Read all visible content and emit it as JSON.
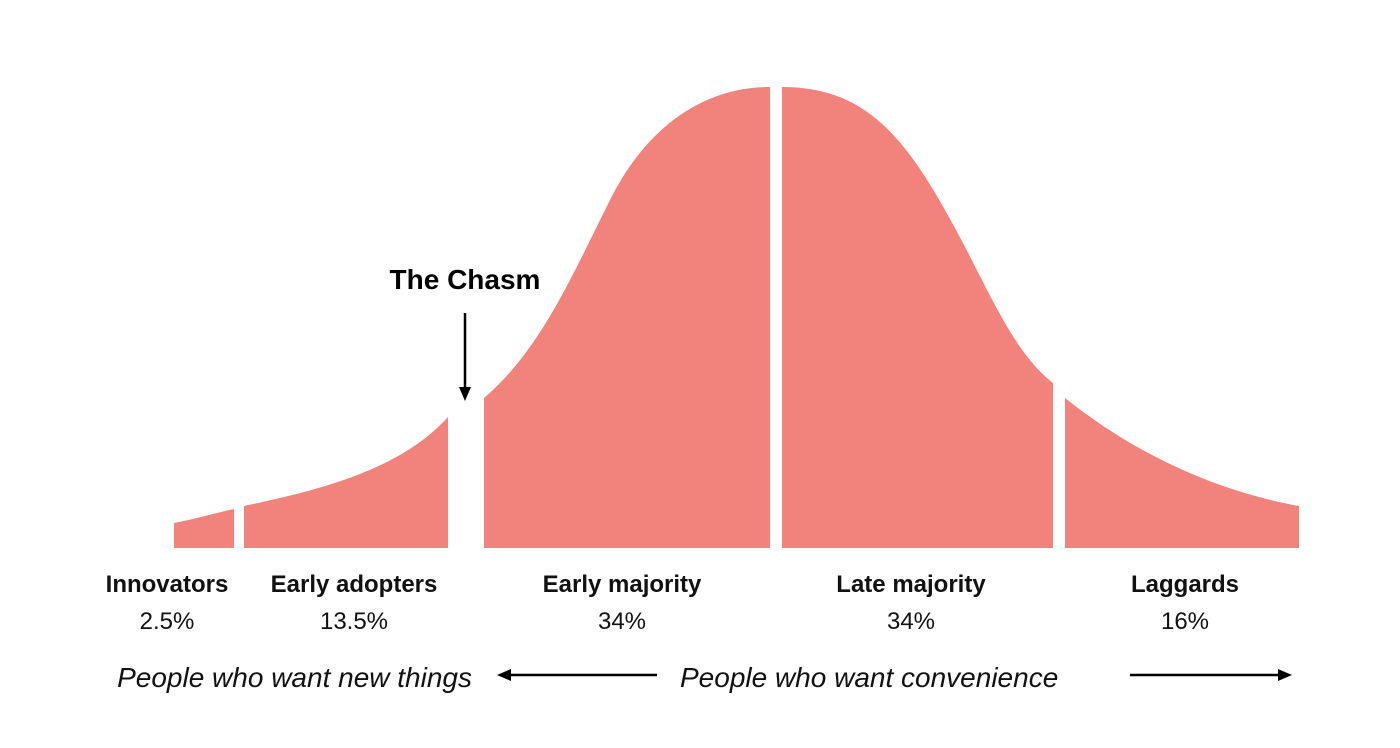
{
  "colors": {
    "segment_fill": "#f2827c",
    "text": "#111111",
    "arrow": "#000000"
  },
  "chasm": {
    "label": "The Chasm"
  },
  "segments": [
    {
      "name": "Innovators",
      "percent": "2.5%"
    },
    {
      "name": "Early adopters",
      "percent": "13.5%"
    },
    {
      "name": "Early majority",
      "percent": "34%"
    },
    {
      "name": "Late majority",
      "percent": "34%"
    },
    {
      "name": "Laggards",
      "percent": "16%"
    }
  ],
  "notes": {
    "left": "People who want new things",
    "right": "People who want convenience"
  }
}
